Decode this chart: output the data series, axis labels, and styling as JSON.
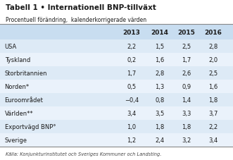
{
  "title": "Tabell 1 • Internationell BNP-tillväxt",
  "subtitle": "Procentuell förändring,  kalenderkorrigerade värden",
  "columns": [
    "2013",
    "2014",
    "2015",
    "2016"
  ],
  "rows": [
    [
      "USA",
      "2,2",
      "1,5",
      "2,5",
      "2,8"
    ],
    [
      "Tyskland",
      "0,2",
      "1,6",
      "1,7",
      "2,0"
    ],
    [
      "Storbritannien",
      "1,7",
      "2,8",
      "2,6",
      "2,5"
    ],
    [
      "Norden*",
      "0,5",
      "1,3",
      "0,9",
      "1,6"
    ],
    [
      "Euroområdet",
      "−0,4",
      "0,8",
      "1,4",
      "1,8"
    ],
    [
      "Världen**",
      "3,4",
      "3,5",
      "3,3",
      "3,7"
    ],
    [
      "Exportvägd BNP°",
      "1,0",
      "1,8",
      "1,8",
      "2,2"
    ],
    [
      "Sverige",
      "1,2",
      "2,4",
      "3,2",
      "3,4"
    ]
  ],
  "footer": "Källa: Konjunkturinstitutet och Sveriges Kommuner och Landsting.",
  "row_bg_odd": "#ddeaf6",
  "row_bg_even": "#eaf2fb",
  "header_bg": "#c8ddf0",
  "bg_color": "#ffffff",
  "title_color": "#1a1a1a",
  "text_color": "#1a1a1a",
  "footer_color": "#444444",
  "line_color": "#888888"
}
